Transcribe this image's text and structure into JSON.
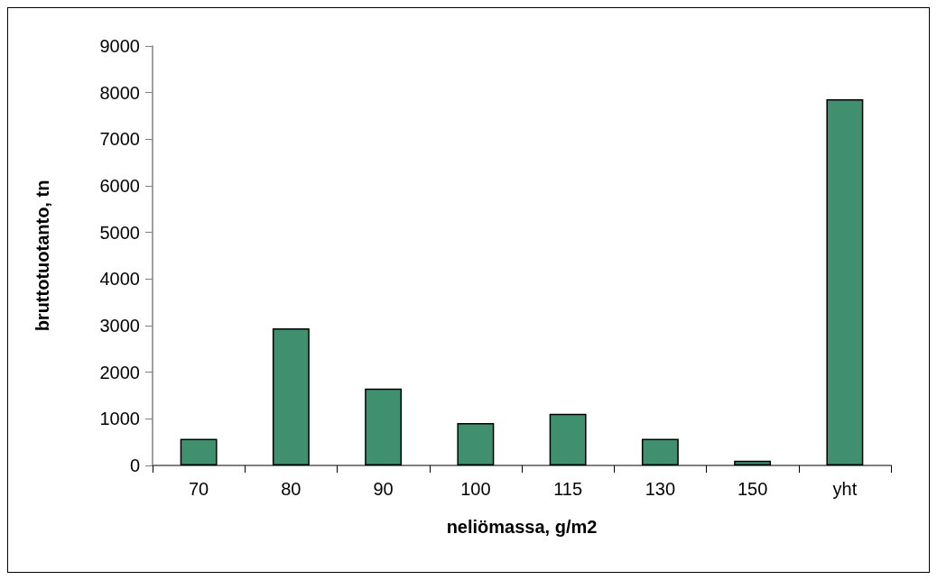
{
  "chart_data": {
    "type": "bar",
    "xlabel": "neliömassa, g/m2",
    "ylabel": "bruttotuotanto, tn",
    "categories": [
      "70",
      "80",
      "90",
      "100",
      "115",
      "130",
      "150",
      "yht"
    ],
    "values": [
      570,
      2940,
      1650,
      910,
      1110,
      570,
      100,
      7860
    ],
    "color": "#409070",
    "ylim": [
      0,
      9000
    ],
    "yticks": [
      0,
      1000,
      2000,
      3000,
      4000,
      5000,
      6000,
      7000,
      8000,
      9000
    ],
    "grid": false
  }
}
